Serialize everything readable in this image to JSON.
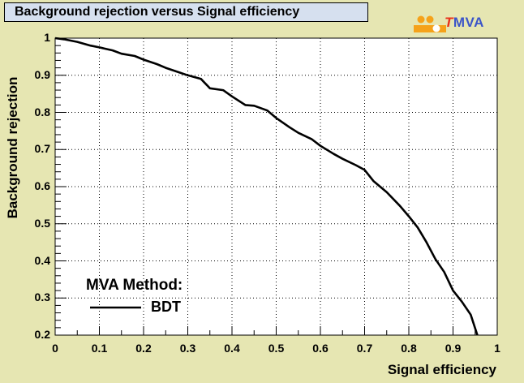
{
  "title": "Background rejection versus Signal efficiency",
  "logo": {
    "text": "TMVA",
    "accent_letter": "T",
    "rest": "MVA",
    "icon": "tmva-dots-logo"
  },
  "colors": {
    "background": "#e6e6b2",
    "title_box": "#d6e0ef",
    "plot_bg": "#ffffff",
    "curve": "#000000",
    "grid": "#000000",
    "logo_orange": "#f5a21a",
    "logo_blue": "#3b55c8",
    "logo_red": "#e8321b"
  },
  "legend": {
    "header": "MVA Method:",
    "entries": [
      {
        "label": "BDT"
      }
    ]
  },
  "chart_data": {
    "type": "line",
    "title": "Background rejection versus Signal efficiency",
    "xlabel": "Signal efficiency",
    "ylabel": "Background rejection",
    "xlim": [
      0,
      1
    ],
    "ylim": [
      0.2,
      1
    ],
    "grid": true,
    "grid_style": "dotted",
    "legend_position": "bottom-left",
    "x_ticks": [
      "0",
      "0.1",
      "0.2",
      "0.3",
      "0.4",
      "0.5",
      "0.6",
      "0.7",
      "0.8",
      "0.9",
      "1"
    ],
    "y_ticks": [
      "0.2",
      "0.3",
      "0.4",
      "0.5",
      "0.6",
      "0.7",
      "0.8",
      "0.9",
      "1"
    ],
    "series": [
      {
        "name": "BDT",
        "x": [
          0,
          0.02,
          0.05,
          0.08,
          0.1,
          0.13,
          0.15,
          0.18,
          0.2,
          0.23,
          0.25,
          0.28,
          0.3,
          0.33,
          0.35,
          0.38,
          0.4,
          0.43,
          0.45,
          0.48,
          0.5,
          0.53,
          0.55,
          0.58,
          0.6,
          0.63,
          0.65,
          0.68,
          0.7,
          0.72,
          0.75,
          0.78,
          0.8,
          0.82,
          0.84,
          0.86,
          0.88,
          0.9,
          0.92,
          0.94,
          0.955
        ],
        "y": [
          1.0,
          0.997,
          0.99,
          0.98,
          0.975,
          0.967,
          0.958,
          0.952,
          0.942,
          0.93,
          0.92,
          0.908,
          0.9,
          0.89,
          0.865,
          0.86,
          0.843,
          0.82,
          0.818,
          0.805,
          0.785,
          0.76,
          0.745,
          0.728,
          0.71,
          0.688,
          0.675,
          0.658,
          0.645,
          0.615,
          0.585,
          0.548,
          0.52,
          0.49,
          0.45,
          0.405,
          0.37,
          0.32,
          0.29,
          0.255,
          0.2
        ]
      }
    ]
  }
}
